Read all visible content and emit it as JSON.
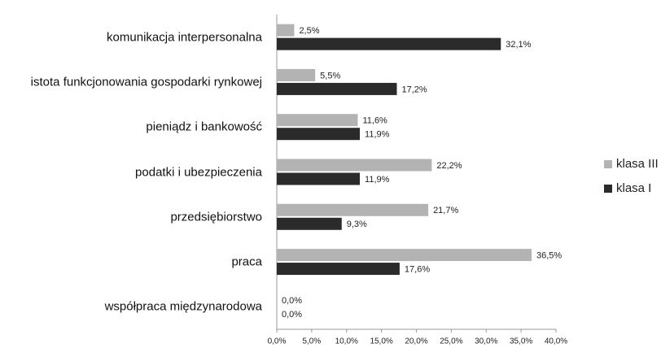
{
  "chart_data": {
    "type": "bar",
    "orientation": "horizontal",
    "categories": [
      "komunikacja interpersonalna",
      "istota funkcjonowania gospodarki rynkowej",
      "pieniądz i bankowość",
      "podatki i ubezpieczenia",
      "przedsiębiorstwo",
      "praca",
      "współpraca międzynarodowa"
    ],
    "series": [
      {
        "name": "klasa III",
        "color": "#b3b3b3",
        "values": [
          2.5,
          5.5,
          11.6,
          22.2,
          21.7,
          36.5,
          0.0
        ],
        "value_labels": [
          "2,5%",
          "5,5%",
          "11,6%",
          "22,2%",
          "21,7%",
          "36,5%",
          "0,0%"
        ]
      },
      {
        "name": "klasa I",
        "color": "#2b2b2b",
        "values": [
          32.1,
          17.2,
          11.9,
          11.9,
          9.3,
          17.6,
          0.0
        ],
        "value_labels": [
          "32,1%",
          "17,2%",
          "11,9%",
          "11,9%",
          "9,3%",
          "17,6%",
          "0,0%"
        ]
      }
    ],
    "xlim": [
      0,
      40
    ],
    "xticks": [
      {
        "value": 0,
        "label": "0,0%"
      },
      {
        "value": 5,
        "label": "5,0%"
      },
      {
        "value": 10,
        "label": "10,0%"
      },
      {
        "value": 15,
        "label": "15,0%"
      },
      {
        "value": 20,
        "label": "20,0%"
      },
      {
        "value": 25,
        "label": "25,0%"
      },
      {
        "value": 30,
        "label": "30,0%"
      },
      {
        "value": 35,
        "label": "35,0%"
      },
      {
        "value": 40,
        "label": "40,0%"
      }
    ],
    "grid": false,
    "legend": "right"
  }
}
